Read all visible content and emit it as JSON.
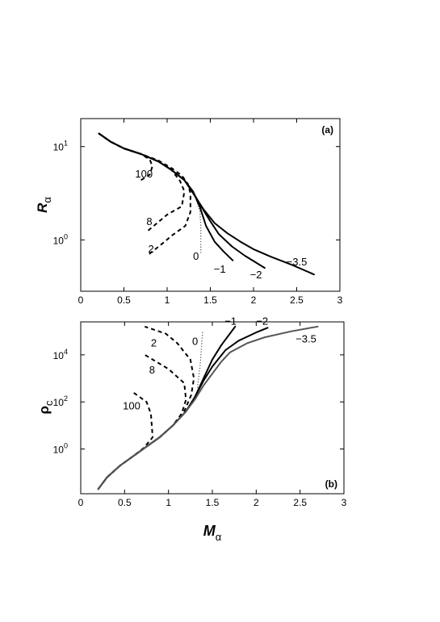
{
  "chart_data": [
    {
      "type": "line",
      "panel_label": "(a)",
      "xlabel": {
        "main": "M",
        "sub": "α"
      },
      "ylabel": {
        "main": "R",
        "sub": "α"
      },
      "xlim": [
        0,
        3
      ],
      "ylim_log10": [
        -0.55,
        1.3
      ],
      "y_scale": "log",
      "x_ticks": [
        0,
        0.5,
        1,
        1.5,
        2,
        2.5,
        3
      ],
      "x_tick_labels": [
        "0",
        "0.5",
        "1",
        "1.5",
        "2",
        "2.5",
        "3"
      ],
      "y_ticks": [
        {
          "mantissa": "10",
          "exponent": "1",
          "log10": 1
        },
        {
          "mantissa": "10",
          "exponent": "0",
          "log10": 0
        }
      ],
      "series": [
        {
          "label": "100",
          "style": "dashed",
          "label_at": [
            0.63,
            0.71
          ],
          "points": [
            [
              0.21,
              1.14
            ],
            [
              0.35,
              1.05
            ],
            [
              0.5,
              0.98
            ],
            [
              0.7,
              0.92
            ],
            [
              0.8,
              0.86
            ],
            [
              0.83,
              0.79
            ],
            [
              0.8,
              0.7
            ],
            [
              0.68,
              0.63
            ]
          ]
        },
        {
          "label": "8",
          "style": "dashed",
          "label_at": [
            0.76,
            0.2
          ],
          "points": [
            [
              0.21,
              1.14
            ],
            [
              0.35,
              1.05
            ],
            [
              0.5,
              0.98
            ],
            [
              0.7,
              0.92
            ],
            [
              0.9,
              0.85
            ],
            [
              1.05,
              0.75
            ],
            [
              1.15,
              0.63
            ],
            [
              1.2,
              0.52
            ],
            [
              1.17,
              0.36
            ],
            [
              1.0,
              0.27
            ],
            [
              0.78,
              0.1
            ]
          ]
        },
        {
          "label": "2",
          "style": "dashed",
          "label_at": [
            0.78,
            -0.09
          ],
          "points": [
            [
              0.21,
              1.14
            ],
            [
              0.35,
              1.05
            ],
            [
              0.5,
              0.98
            ],
            [
              0.7,
              0.92
            ],
            [
              0.9,
              0.85
            ],
            [
              1.05,
              0.77
            ],
            [
              1.17,
              0.69
            ],
            [
              1.24,
              0.6
            ],
            [
              1.27,
              0.5
            ],
            [
              1.27,
              0.3
            ],
            [
              1.21,
              0.15
            ],
            [
              1.06,
              0.05
            ],
            [
              0.93,
              -0.05
            ],
            [
              0.78,
              -0.16
            ]
          ]
        },
        {
          "label": "0",
          "style": "dotted",
          "label_at": [
            1.3,
            -0.17
          ],
          "points": [
            [
              1.33,
              0.45
            ],
            [
              1.38,
              0.3
            ],
            [
              1.39,
              0.15
            ],
            [
              1.39,
              -0.16
            ]
          ]
        },
        {
          "label": "−1",
          "style": "solid",
          "label_at": [
            1.54,
            -0.31
          ],
          "points": [
            [
              0.21,
              1.14
            ],
            [
              0.35,
              1.05
            ],
            [
              0.5,
              0.98
            ],
            [
              0.7,
              0.92
            ],
            [
              0.9,
              0.84
            ],
            [
              1.05,
              0.75
            ],
            [
              1.2,
              0.64
            ],
            [
              1.3,
              0.52
            ],
            [
              1.38,
              0.35
            ],
            [
              1.45,
              0.15
            ],
            [
              1.55,
              -0.02
            ],
            [
              1.65,
              -0.12
            ],
            [
              1.76,
              -0.22
            ]
          ]
        },
        {
          "label": "−2",
          "style": "solid",
          "label_at": [
            1.96,
            -0.37
          ],
          "points": [
            [
              0.21,
              1.14
            ],
            [
              0.35,
              1.05
            ],
            [
              0.5,
              0.98
            ],
            [
              0.7,
              0.92
            ],
            [
              0.9,
              0.84
            ],
            [
              1.05,
              0.75
            ],
            [
              1.2,
              0.64
            ],
            [
              1.3,
              0.51
            ],
            [
              1.4,
              0.35
            ],
            [
              1.5,
              0.2
            ],
            [
              1.6,
              0.06
            ],
            [
              1.75,
              -0.07
            ],
            [
              1.9,
              -0.17
            ],
            [
              2.13,
              -0.3
            ]
          ]
        },
        {
          "label": "−3.5",
          "style": "solid",
          "label_at": [
            2.38,
            -0.23
          ],
          "points": [
            [
              0.21,
              1.14
            ],
            [
              0.35,
              1.05
            ],
            [
              0.5,
              0.98
            ],
            [
              0.7,
              0.92
            ],
            [
              0.9,
              0.84
            ],
            [
              1.05,
              0.75
            ],
            [
              1.2,
              0.64
            ],
            [
              1.3,
              0.5
            ],
            [
              1.42,
              0.33
            ],
            [
              1.55,
              0.18
            ],
            [
              1.7,
              0.07
            ],
            [
              1.85,
              -0.02
            ],
            [
              2.0,
              -0.1
            ],
            [
              2.2,
              -0.18
            ],
            [
              2.45,
              -0.27
            ],
            [
              2.7,
              -0.37
            ]
          ]
        }
      ]
    },
    {
      "type": "line",
      "panel_label": "(b)",
      "xlabel": {
        "main": "M",
        "sub": "α"
      },
      "ylabel": {
        "main": "ρ",
        "sub": "c"
      },
      "xlim": [
        0,
        3
      ],
      "ylim_log10": [
        -1.9,
        5.4
      ],
      "y_scale": "log",
      "x_ticks": [
        0,
        0.5,
        1,
        1.5,
        2,
        2.5,
        3
      ],
      "x_tick_labels": [
        "0",
        "0.5",
        "1",
        "1.5",
        "2",
        "2.5",
        "3"
      ],
      "y_ticks": [
        {
          "mantissa": "10",
          "exponent": "4",
          "log10": 4
        },
        {
          "mantissa": "10",
          "exponent": "2",
          "log10": 2
        },
        {
          "mantissa": "10",
          "exponent": "0",
          "log10": 0
        }
      ],
      "series": [
        {
          "label": "100",
          "style": "dashed",
          "label_at": [
            0.48,
            1.85
          ],
          "points": [
            [
              0.2,
              -1.7
            ],
            [
              0.3,
              -1.2
            ],
            [
              0.45,
              -0.7
            ],
            [
              0.6,
              -0.3
            ],
            [
              0.72,
              0.05
            ],
            [
              0.82,
              0.5
            ],
            [
              0.8,
              1.5
            ],
            [
              0.75,
              2.0
            ],
            [
              0.6,
              2.4
            ]
          ]
        },
        {
          "label": "8",
          "style": "dashed",
          "label_at": [
            0.78,
            3.38
          ],
          "points": [
            [
              0.2,
              -1.7
            ],
            [
              0.3,
              -1.2
            ],
            [
              0.45,
              -0.7
            ],
            [
              0.6,
              -0.3
            ],
            [
              0.75,
              0.1
            ],
            [
              0.9,
              0.5
            ],
            [
              1.05,
              1.0
            ],
            [
              1.15,
              1.5
            ],
            [
              1.2,
              2.1
            ],
            [
              1.18,
              2.8
            ],
            [
              1.0,
              3.4
            ],
            [
              0.73,
              4.0
            ]
          ]
        },
        {
          "label": "2",
          "style": "dashed",
          "label_at": [
            0.8,
            4.52
          ],
          "points": [
            [
              0.2,
              -1.7
            ],
            [
              0.3,
              -1.2
            ],
            [
              0.45,
              -0.7
            ],
            [
              0.6,
              -0.3
            ],
            [
              0.75,
              0.1
            ],
            [
              0.9,
              0.5
            ],
            [
              1.05,
              1.0
            ],
            [
              1.18,
              1.6
            ],
            [
              1.26,
              2.3
            ],
            [
              1.29,
              3.0
            ],
            [
              1.25,
              3.8
            ],
            [
              1.1,
              4.5
            ],
            [
              0.97,
              4.9
            ],
            [
              0.73,
              5.2
            ]
          ]
        },
        {
          "label": "0",
          "style": "dotted",
          "label_at": [
            1.27,
            4.6
          ],
          "points": [
            [
              1.33,
              2.6
            ],
            [
              1.36,
              3.5
            ],
            [
              1.39,
              5.0
            ]
          ]
        },
        {
          "label": "−1",
          "style": "solid",
          "label_at": [
            1.64,
            5.45
          ],
          "points": [
            [
              0.2,
              -1.7
            ],
            [
              0.3,
              -1.2
            ],
            [
              0.45,
              -0.7
            ],
            [
              0.6,
              -0.3
            ],
            [
              0.75,
              0.1
            ],
            [
              0.9,
              0.5
            ],
            [
              1.05,
              1.0
            ],
            [
              1.2,
              1.6
            ],
            [
              1.3,
              2.2
            ],
            [
              1.4,
              3.0
            ],
            [
              1.5,
              3.8
            ],
            [
              1.6,
              4.4
            ],
            [
              1.7,
              4.9
            ],
            [
              1.76,
              5.2
            ]
          ]
        },
        {
          "label": "−2",
          "style": "solid",
          "label_at": [
            2.0,
            5.45
          ],
          "points": [
            [
              0.2,
              -1.7
            ],
            [
              0.3,
              -1.2
            ],
            [
              0.45,
              -0.7
            ],
            [
              0.6,
              -0.3
            ],
            [
              0.75,
              0.1
            ],
            [
              0.9,
              0.5
            ],
            [
              1.05,
              1.0
            ],
            [
              1.2,
              1.6
            ],
            [
              1.3,
              2.2
            ],
            [
              1.4,
              2.9
            ],
            [
              1.5,
              3.5
            ],
            [
              1.65,
              4.2
            ],
            [
              1.8,
              4.6
            ],
            [
              2.0,
              4.95
            ],
            [
              2.13,
              5.15
            ]
          ]
        },
        {
          "label": "−3.5",
          "style": "solid-gray",
          "label_at": [
            2.45,
            4.7
          ],
          "points": [
            [
              0.2,
              -1.7
            ],
            [
              0.3,
              -1.2
            ],
            [
              0.45,
              -0.7
            ],
            [
              0.6,
              -0.3
            ],
            [
              0.75,
              0.1
            ],
            [
              0.9,
              0.5
            ],
            [
              1.05,
              1.0
            ],
            [
              1.2,
              1.6
            ],
            [
              1.3,
              2.1
            ],
            [
              1.4,
              2.7
            ],
            [
              1.5,
              3.2
            ],
            [
              1.6,
              3.7
            ],
            [
              1.7,
              4.1
            ],
            [
              1.9,
              4.5
            ],
            [
              2.1,
              4.75
            ],
            [
              2.4,
              5.0
            ],
            [
              2.7,
              5.2
            ]
          ]
        }
      ]
    }
  ]
}
